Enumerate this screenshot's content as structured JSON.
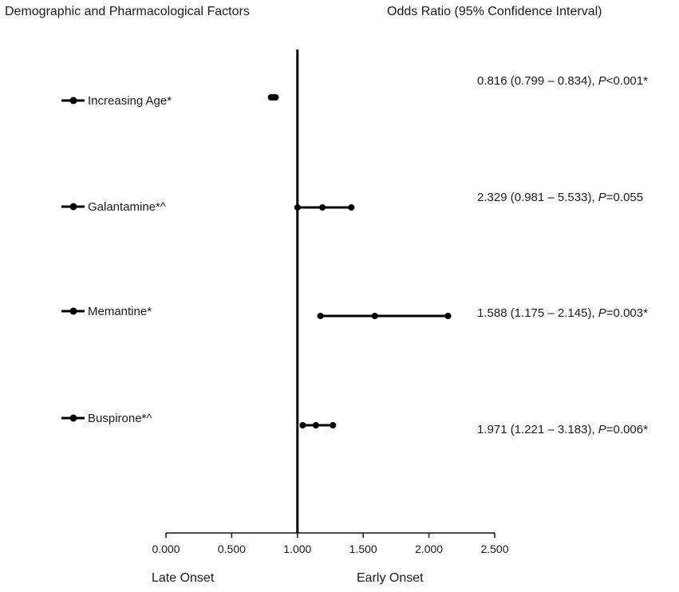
{
  "chart_data": {
    "type": "forest",
    "left_header": "Demographic and Pharmacological Factors",
    "right_header": "Odds Ratio (95% Confidence Interval)",
    "xlabel_left": "Late Onset",
    "xlabel_right": "Early Onset",
    "xlim": [
      0,
      2.5
    ],
    "reference_line": 1.0,
    "ticks": [
      "0.000",
      "0.500",
      "1.000",
      "1.500",
      "2.000",
      "2.500"
    ],
    "tick_values": [
      0,
      0.5,
      1.0,
      1.5,
      2.0,
      2.5
    ],
    "factors": [
      {
        "label": "Increasing Age*",
        "estimate": 0.816,
        "lower": 0.799,
        "upper": 0.834,
        "ci_text": "0.816 (0.799 – 0.834), ",
        "p_letter": "P",
        "p_text": "<0.001*"
      },
      {
        "label": "Galantamine*^",
        "estimate": 2.329,
        "lower": 0.981,
        "upper": 5.533,
        "plot_points": [
          1.0,
          1.19,
          1.41
        ],
        "ci_text": "2.329 (0.981 – 5.533), ",
        "p_letter": "P",
        "p_text": "=0.055"
      },
      {
        "label": "Memantine*",
        "estimate": 1.588,
        "lower": 1.175,
        "upper": 2.145,
        "ci_text": "1.588 (1.175 – 2.145), ",
        "p_letter": "P",
        "p_text": "=0.003*"
      },
      {
        "label": "Buspirone*^",
        "estimate": 1.971,
        "lower": 1.221,
        "upper": 3.183,
        "plot_points": [
          1.04,
          1.14,
          1.27
        ],
        "ci_text": "1.971 (1.221 – 3.183), ",
        "p_letter": "P",
        "p_text": "=0.006*"
      }
    ]
  }
}
